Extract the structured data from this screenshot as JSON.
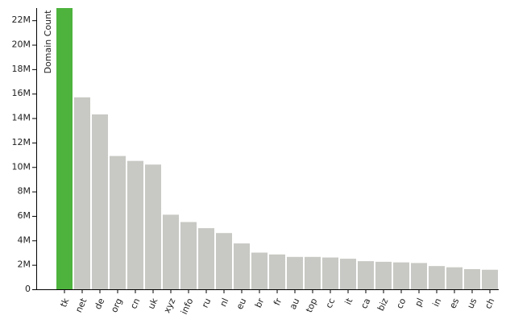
{
  "chart_data": {
    "type": "bar",
    "y_label": "Domain Count",
    "categories": [
      "tk",
      "net",
      "de",
      "org",
      "cn",
      "uk",
      "xyz",
      "info",
      "ru",
      "nl",
      "eu",
      "br",
      "fr",
      "au",
      "top",
      "cc",
      "it",
      "ca",
      "biz",
      "co",
      "pl",
      "in",
      "es",
      "us",
      "ch"
    ],
    "values": [
      23000000,
      15700000,
      14300000,
      10900000,
      10500000,
      10200000,
      6100000,
      5500000,
      5000000,
      4600000,
      3750000,
      3000000,
      2850000,
      2650000,
      2650000,
      2600000,
      2500000,
      2300000,
      2250000,
      2200000,
      2150000,
      1900000,
      1800000,
      1650000,
      1600000
    ],
    "colors": [
      "#4db33d",
      "#c8c8c4",
      "#c8c8c4",
      "#c8c8c4",
      "#c8c8c4",
      "#c8c8c4",
      "#c8c8c4",
      "#c8c8c4",
      "#c8c8c4",
      "#c8c8c4",
      "#c8c8c4",
      "#c8c8c4",
      "#c8c8c4",
      "#c8c8c4",
      "#c8c8c4",
      "#c8c8c4",
      "#c8c8c4",
      "#c8c8c4",
      "#c8c8c4",
      "#c8c8c4",
      "#c8c8c4",
      "#c8c8c4",
      "#c8c8c4",
      "#c8c8c4",
      "#c8c8c4"
    ],
    "ylim": [
      0,
      23000000
    ],
    "yticks": [
      0,
      {
        "value": 2000000,
        "label": "2M"
      },
      {
        "value": 4000000,
        "label": "4M"
      },
      {
        "value": 6000000,
        "label": "6M"
      },
      {
        "value": 8000000,
        "label": "8M"
      },
      {
        "value": 10000000,
        "label": "10M"
      },
      {
        "value": 12000000,
        "label": "12M"
      },
      {
        "value": 14000000,
        "label": "14M"
      },
      {
        "value": 16000000,
        "label": "16M"
      },
      {
        "value": 18000000,
        "label": "18M"
      },
      {
        "value": 20000000,
        "label": "20M"
      },
      {
        "value": 22000000,
        "label": "22M"
      }
    ]
  }
}
